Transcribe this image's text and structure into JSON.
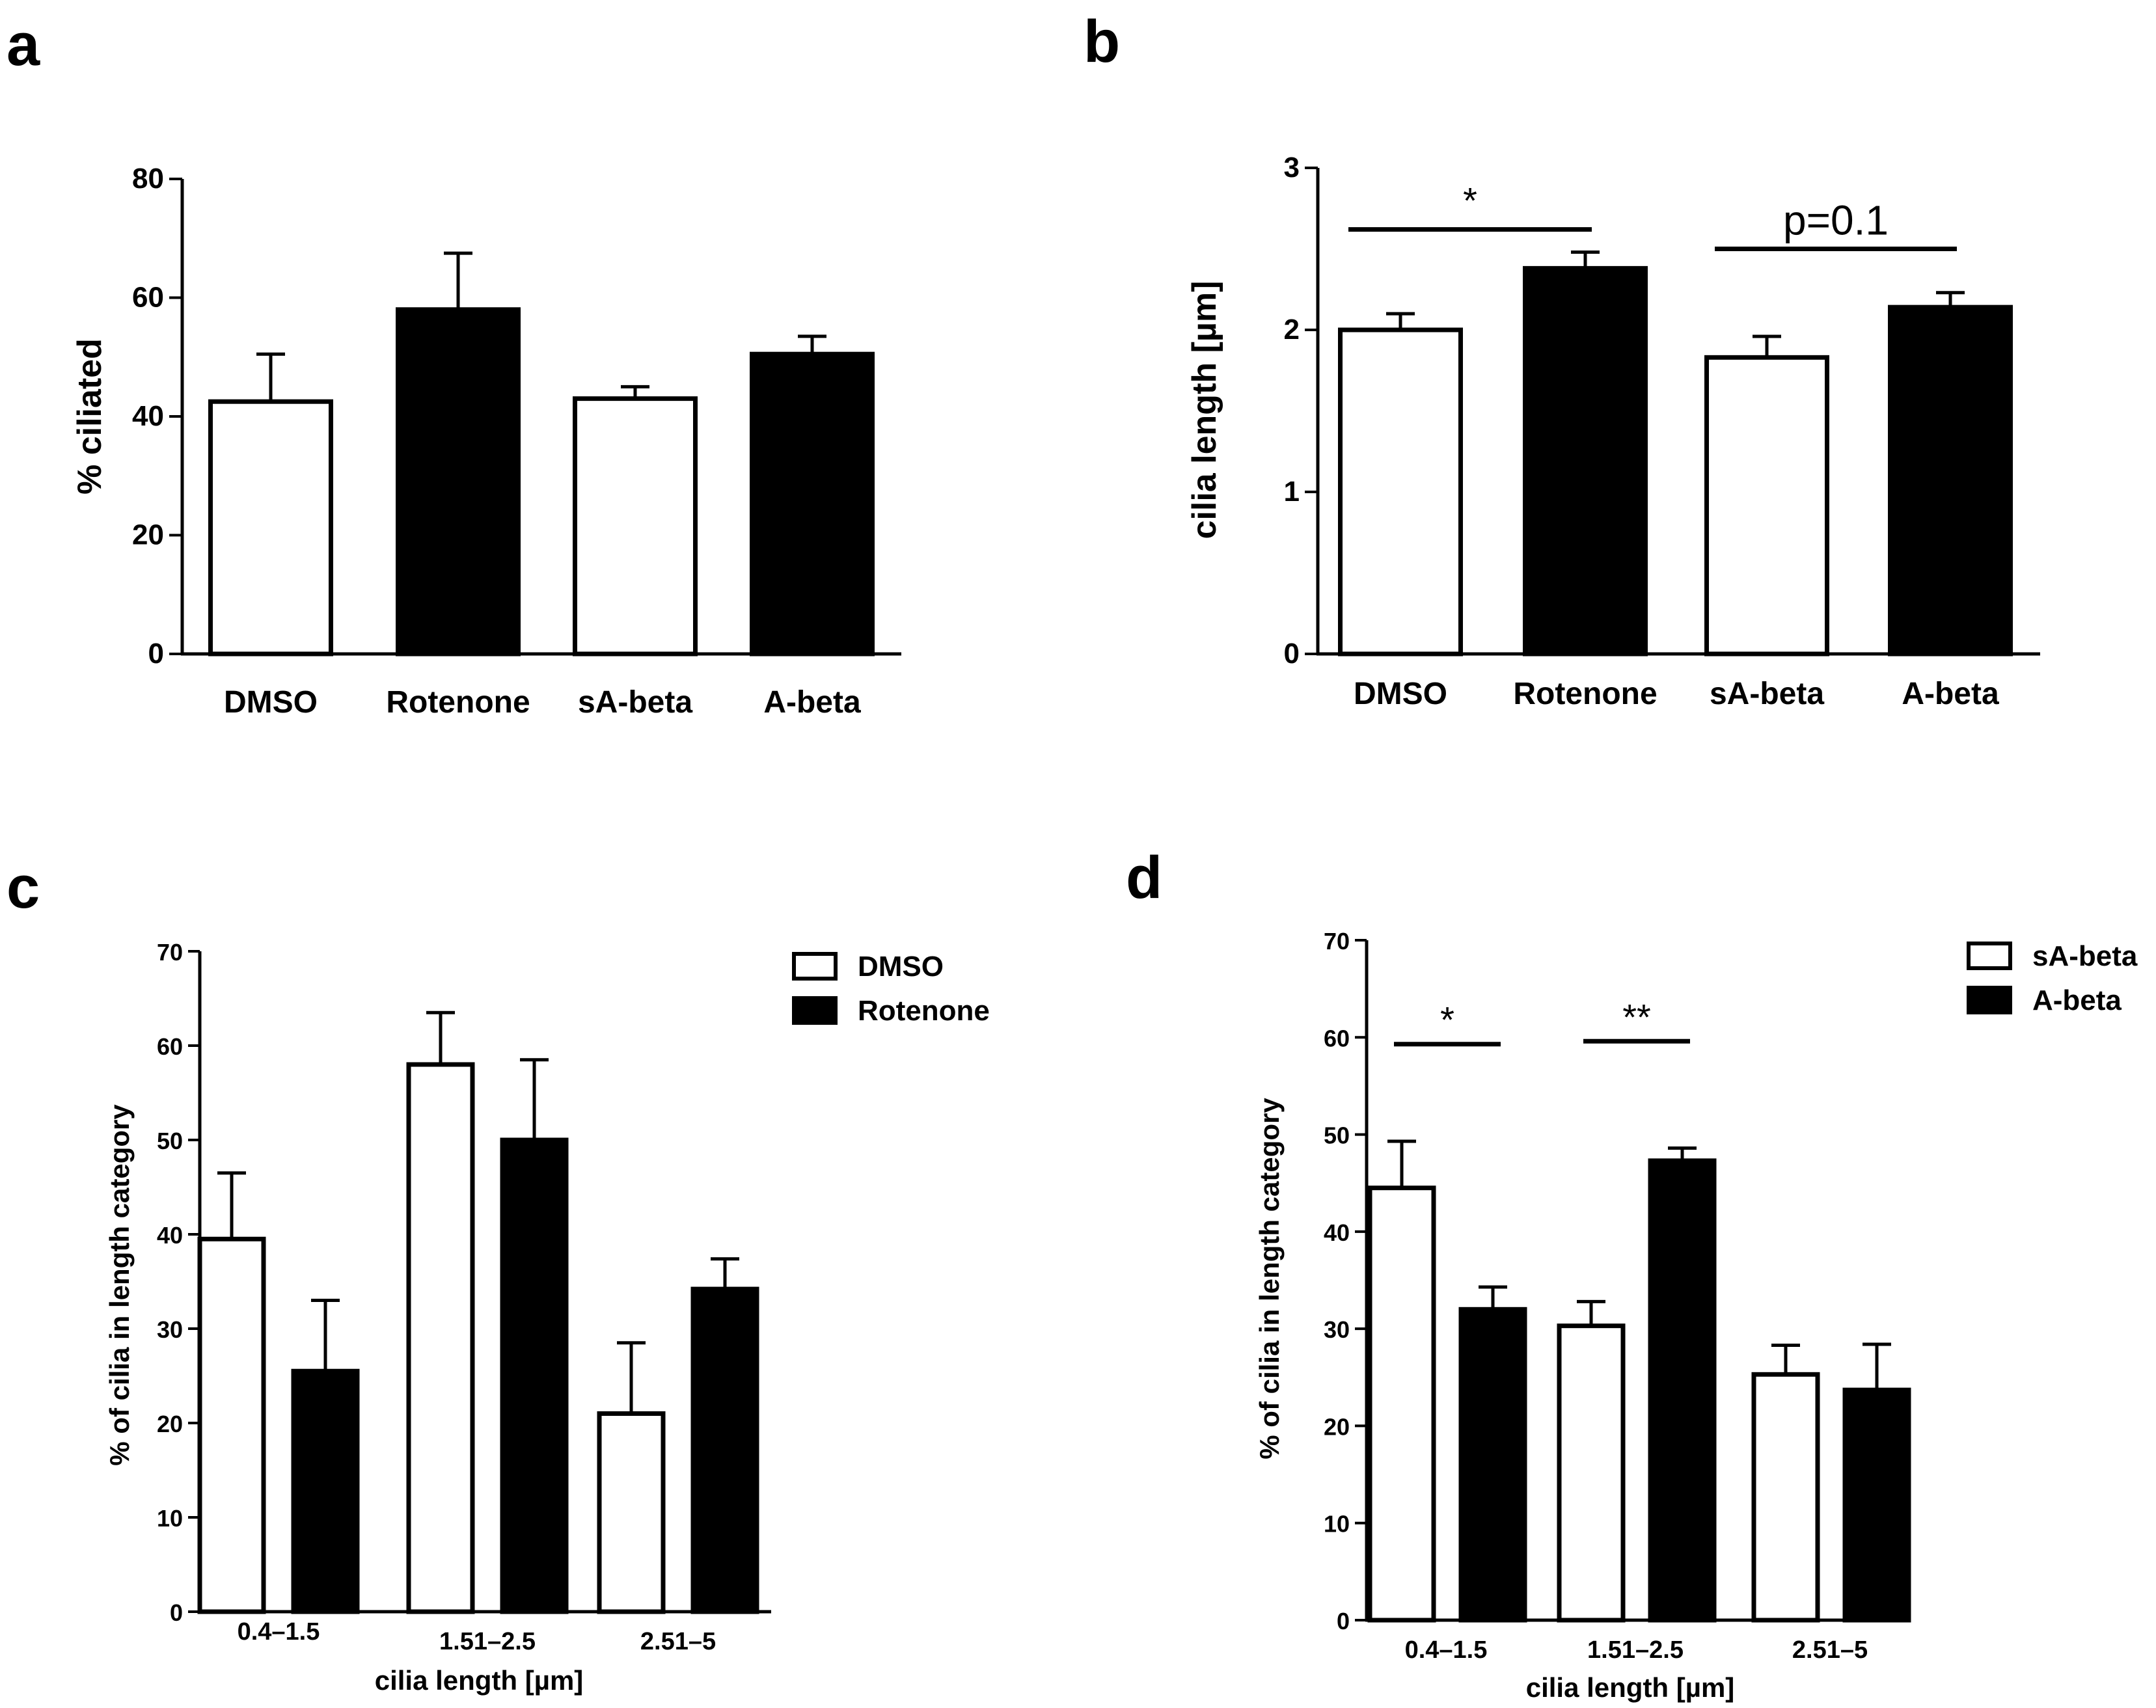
{
  "chart_data": [
    {
      "id": "a",
      "panel_label": "a",
      "type": "bar",
      "categories": [
        "DMSO",
        "Rotenone",
        "sA-beta",
        "A-beta"
      ],
      "values": [
        42.5,
        58,
        43,
        50.5
      ],
      "errors": [
        8,
        9.5,
        2,
        3
      ],
      "fills": [
        "white",
        "black",
        "white",
        "black"
      ],
      "ylabel": "% ciliated",
      "xlabel": "",
      "ylim": [
        0,
        80
      ],
      "yticks": [
        0,
        20,
        40,
        60,
        80
      ],
      "significance": []
    },
    {
      "id": "b",
      "panel_label": "b",
      "type": "bar",
      "categories": [
        "DMSO",
        "Rotenone",
        "sA-beta",
        "A-beta"
      ],
      "values": [
        2.0,
        2.38,
        1.83,
        2.14
      ],
      "errors": [
        0.1,
        0.1,
        0.13,
        0.09
      ],
      "fills": [
        "white",
        "black",
        "white",
        "black"
      ],
      "ylabel": "cilia length [µm]",
      "xlabel": "",
      "ylim": [
        0,
        3
      ],
      "yticks": [
        0,
        1,
        2,
        3
      ],
      "significance": [
        {
          "from": 0,
          "to": 1,
          "y": 2.62,
          "label": "*"
        },
        {
          "from": 2,
          "to": 3,
          "y": 2.5,
          "label": "p=0.1"
        }
      ]
    },
    {
      "id": "c",
      "panel_label": "c",
      "type": "bar",
      "categories": [
        "0.4–1.5",
        "1.51–2.5",
        "2.51–5"
      ],
      "series": [
        {
          "name": "DMSO",
          "fill": "white",
          "values": [
            39.5,
            58,
            21
          ],
          "errors": [
            7,
            5.5,
            7.5
          ]
        },
        {
          "name": "Rotenone",
          "fill": "black",
          "values": [
            25.5,
            50,
            34.2
          ],
          "errors": [
            7.5,
            8.5,
            3.2
          ]
        }
      ],
      "ylabel": "% of cilia in length category",
      "xlabel": "cilia length [µm]",
      "ylim": [
        0,
        70
      ],
      "yticks": [
        0,
        10,
        20,
        30,
        40,
        50,
        60,
        70
      ],
      "legend": "top-right",
      "significance": []
    },
    {
      "id": "d",
      "panel_label": "d",
      "type": "bar",
      "categories": [
        "0.4–1.5",
        "1.51–2.5",
        "2.51–5"
      ],
      "series": [
        {
          "name": "sA-beta",
          "fill": "white",
          "values": [
            44.5,
            30.3,
            25.3
          ],
          "errors": [
            4.8,
            2.5,
            3
          ]
        },
        {
          "name": "A-beta",
          "fill": "black",
          "values": [
            32,
            47.3,
            23.7
          ],
          "errors": [
            2.3,
            1.3,
            4.7
          ]
        }
      ],
      "ylabel": "% of cilia in length category",
      "xlabel": "cilia length [µm]",
      "ylim": [
        0,
        70
      ],
      "yticks": [
        0,
        10,
        20,
        30,
        40,
        50,
        60,
        70
      ],
      "legend": "top-right",
      "significance": [
        {
          "category": 0,
          "y": 59.3,
          "label": "*"
        },
        {
          "category": 1,
          "y": 59.6,
          "label": "**"
        }
      ]
    }
  ]
}
